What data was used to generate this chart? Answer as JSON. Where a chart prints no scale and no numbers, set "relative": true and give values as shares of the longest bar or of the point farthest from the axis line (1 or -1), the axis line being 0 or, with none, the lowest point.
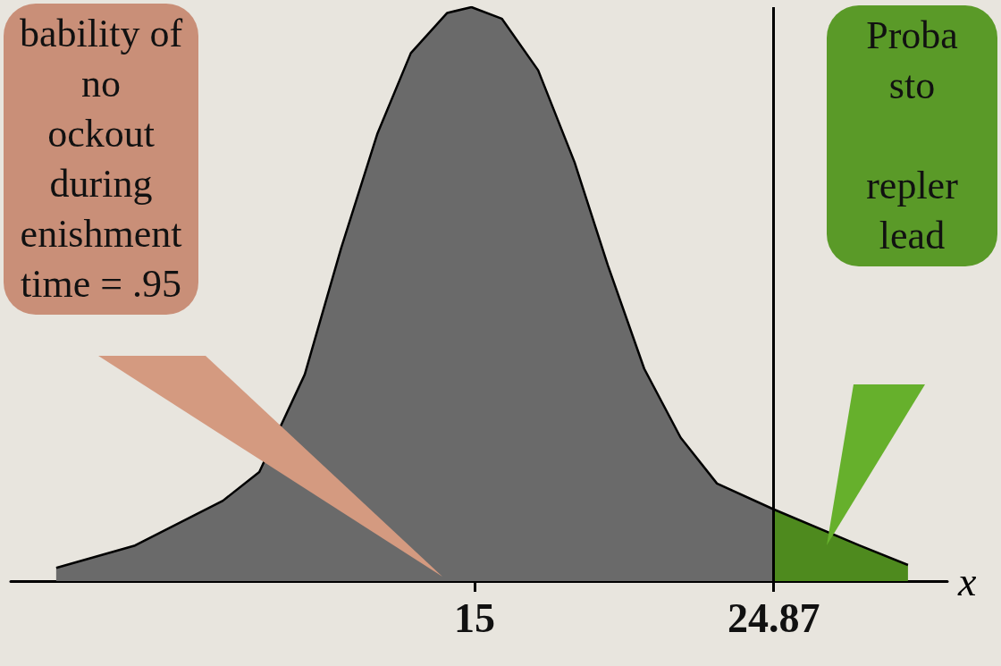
{
  "chart_data": {
    "type": "area",
    "relative": true,
    "xlabel": "x",
    "xlim": [
      -0.3,
      30.6
    ],
    "xticks": [
      15,
      24.87
    ],
    "series": [
      {
        "color": "#6a6a6a",
        "x": [
          1.2,
          3.8,
          6.7,
          7.9,
          9.4,
          10.6,
          11.8,
          12.9,
          14.1,
          14.9,
          15.9,
          17.1,
          18.3,
          19.4,
          20.6,
          21.8,
          23.0,
          24.87
        ],
        "values": [
          0.023,
          0.062,
          0.14,
          0.19,
          0.36,
          0.58,
          0.78,
          0.92,
          0.99,
          1,
          0.98,
          0.89,
          0.73,
          0.55,
          0.37,
          0.25,
          0.17,
          0.125
        ]
      },
      {
        "color": "#4e8a1e",
        "x": [
          24.87,
          27.7,
          29.3
        ],
        "values": [
          0.125,
          0.062,
          0.028
        ]
      }
    ],
    "ref_lines": [
      {
        "axis": "x",
        "value": 24.87,
        "color": "#000000"
      }
    ],
    "annotations": [
      "bability of\nno\nockout\nduring\nenishment\ntime = .95",
      "Proba\nsto\n\nrepler\nlead"
    ]
  }
}
